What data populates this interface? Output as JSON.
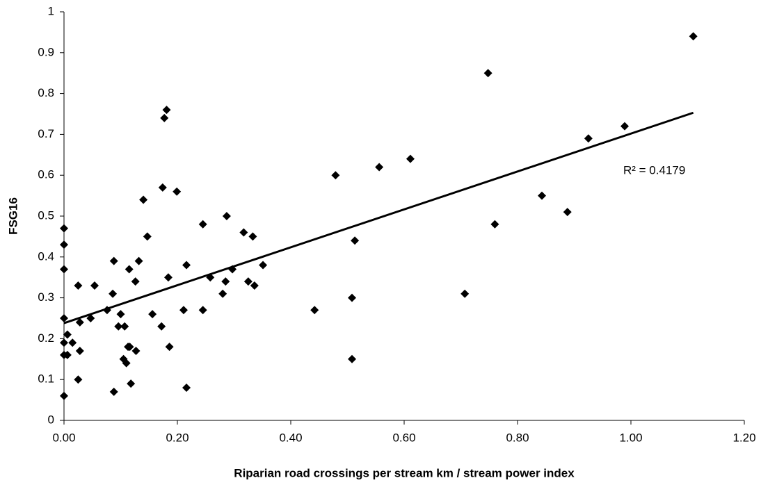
{
  "chart_data": {
    "type": "scatter",
    "x_label": "Riparian road crossings per stream km / stream power index",
    "y_label": "FSG16",
    "annotation": "R² = 0.4179",
    "series": [
      {
        "color": "#000000",
        "x": [
          0,
          0,
          0,
          0,
          0,
          0,
          0,
          0.006,
          0.006,
          0.015,
          0.025,
          0.028,
          0.028,
          0.025,
          0.047,
          0.054,
          0.076,
          0.086,
          0.088,
          0.088,
          0.096,
          0.1,
          0.107,
          0.105,
          0.11,
          0.113,
          0.116,
          0.115,
          0.118,
          0.126,
          0.127,
          0.132,
          0.14,
          0.147,
          0.156,
          0.172,
          0.174,
          0.177,
          0.184,
          0.186,
          0.181,
          0.199,
          0.211,
          0.216,
          0.216,
          0.245,
          0.245,
          0.258,
          0.28,
          0.285,
          0.287,
          0.297,
          0.317,
          0.325,
          0.333,
          0.336,
          0.351,
          0.442,
          0.479,
          0.508,
          0.508,
          0.513,
          0.556,
          0.611,
          0.707,
          0.748,
          0.76,
          0.843,
          0.888,
          0.925,
          0.989,
          1.11
        ],
        "values": [
          0.47,
          0.43,
          0.37,
          0.25,
          0.19,
          0.16,
          0.06,
          0.21,
          0.16,
          0.19,
          0.33,
          0.24,
          0.17,
          0.1,
          0.25,
          0.33,
          0.27,
          0.31,
          0.39,
          0.07,
          0.23,
          0.26,
          0.23,
          0.15,
          0.14,
          0.18,
          0.18,
          0.37,
          0.09,
          0.34,
          0.17,
          0.39,
          0.54,
          0.45,
          0.26,
          0.23,
          0.57,
          0.74,
          0.35,
          0.18,
          0.76,
          0.56,
          0.27,
          0.38,
          0.08,
          0.48,
          0.27,
          0.35,
          0.31,
          0.34,
          0.5,
          0.37,
          0.46,
          0.34,
          0.45,
          0.33,
          0.38,
          0.27,
          0.6,
          0.3,
          0.15,
          0.44,
          0.62,
          0.64,
          0.31,
          0.85,
          0.48,
          0.55,
          0.51,
          0.69,
          0.72,
          0.94
        ]
      }
    ],
    "trendline": {
      "x": [
        0,
        1.11
      ],
      "y": [
        0.238,
        0.753
      ]
    },
    "xlim": [
      0,
      1.2
    ],
    "xticks": [
      {
        "value": 0,
        "label": "0.00"
      },
      {
        "value": 0.2,
        "label": "0.20"
      },
      {
        "value": 0.4,
        "label": "0.40"
      },
      {
        "value": 0.6,
        "label": "0.60"
      },
      {
        "value": 0.8,
        "label": "0.80"
      },
      {
        "value": 1,
        "label": "1.00"
      },
      {
        "value": 1.2,
        "label": "1.20"
      }
    ],
    "ylim": [
      0,
      1
    ],
    "yticks": [
      0,
      0.1,
      0.2,
      0.3,
      0.4,
      0.5,
      0.6,
      0.7,
      0.8,
      0.9,
      1
    ],
    "grid": false
  }
}
